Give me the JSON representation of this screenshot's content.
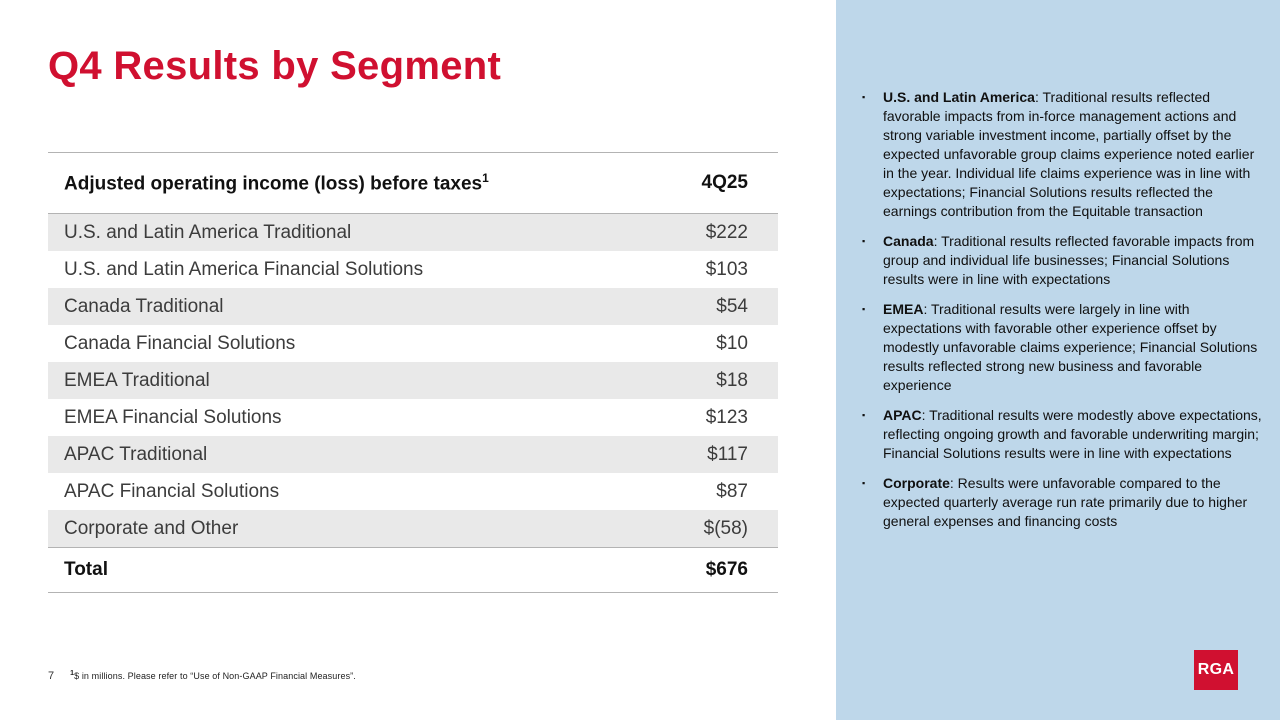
{
  "slide": {
    "title": "Q4 Results by Segment",
    "page_number": "7",
    "footnote_sup": "1",
    "footnote": "$ in millions. Please refer to “Use of Non-GAAP Financial Measures”.",
    "logo_text": "RGA"
  },
  "colors": {
    "accent_red": "#d01030",
    "panel_blue": "#bed7ea",
    "row_gray": "#e9e9e9"
  },
  "table": {
    "header": {
      "label": "Adjusted operating income (loss) before taxes",
      "superscript": "1",
      "value_col": "4Q25"
    },
    "rows": [
      {
        "label": "U.S. and Latin America Traditional",
        "value": "$222"
      },
      {
        "label": "U.S. and Latin America Financial Solutions",
        "value": "$103"
      },
      {
        "label": "Canada Traditional",
        "value": "$54"
      },
      {
        "label": "Canada Financial Solutions",
        "value": "$10"
      },
      {
        "label": "EMEA Traditional",
        "value": "$18"
      },
      {
        "label": "EMEA Financial Solutions",
        "value": "$123"
      },
      {
        "label": "APAC Traditional",
        "value": "$117"
      },
      {
        "label": "APAC Financial Solutions",
        "value": "$87"
      },
      {
        "label": "Corporate and Other",
        "value": "$(58)"
      }
    ],
    "total": {
      "label": "Total",
      "value": "$676"
    }
  },
  "commentary": {
    "bullet_char": "▪",
    "bullets": [
      {
        "lead": "U.S. and Latin America",
        "body": ": Traditional results reflected favorable impacts from in-force management actions and strong variable investment income, partially offset by the expected unfavorable group claims experience noted earlier in the year. Individual life claims experience was in line with expectations; Financial Solutions results reflected the earnings contribution from the Equitable transaction"
      },
      {
        "lead": "Canada",
        "body": ": Traditional results reflected favorable impacts from group and individual life businesses; Financial Solutions results were in line with expectations"
      },
      {
        "lead": "EMEA",
        "body": ": Traditional results were largely in line with expectations with favorable other experience offset by modestly unfavorable claims experience; Financial Solutions results reflected strong new business and favorable experience"
      },
      {
        "lead": "APAC",
        "body": ": Traditional results were modestly above expectations, reflecting ongoing growth and favorable underwriting margin; Financial Solutions results were in line with expectations"
      },
      {
        "lead": "Corporate",
        "body": ": Results were unfavorable compared to the expected quarterly average run rate primarily due to higher general expenses and financing costs"
      }
    ]
  }
}
